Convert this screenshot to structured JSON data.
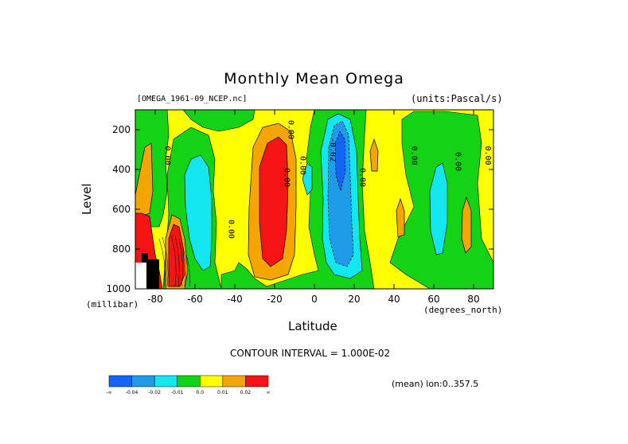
{
  "title": "Monthly Mean Omega",
  "file_label": "[OMEGA_1961-09_NCEP.nc]",
  "units_label": "(units:Pascal/s)",
  "ylabel": "Level",
  "yunit": "(millibar)",
  "xlabel": "Latitude",
  "xunit": "(degrees_north)",
  "contour_interval": "CONTOUR INTERVAL = 1.000E-02",
  "mean_label": "(mean) lon:0..357.5",
  "chart_data": {
    "type": "heatmap",
    "title": "Monthly Mean Omega",
    "xlabel": "Latitude",
    "ylabel": "Level",
    "xlim": [
      -90,
      90
    ],
    "ylim": [
      1000,
      100
    ],
    "x_ticks": [
      -80,
      -60,
      -40,
      -20,
      0,
      20,
      40,
      60,
      80
    ],
    "y_ticks": [
      200,
      400,
      600,
      800,
      1000
    ],
    "contour_labels": [
      {
        "text": "0.00",
        "lat": -75,
        "level": 330
      },
      {
        "text": "0.00",
        "lat": -43,
        "level": 700
      },
      {
        "text": "0.00",
        "lat": -13,
        "level": 200
      },
      {
        "text": "0.00",
        "lat": -7,
        "level": 380
      },
      {
        "text": "0.00",
        "lat": -15,
        "level": 440
      },
      {
        "text": "-0.02",
        "lat": 8,
        "level": 300
      },
      {
        "text": "0.00",
        "lat": 23,
        "level": 440
      },
      {
        "text": "0.00",
        "lat": 49,
        "level": 330
      },
      {
        "text": "0.00",
        "lat": 71,
        "level": 360
      },
      {
        "text": "0.00",
        "lat": 86,
        "level": 330
      }
    ],
    "colorbar": {
      "colors": [
        "#1464f5",
        "#1e9ce8",
        "#14e6f0",
        "#14d214",
        "#ffff00",
        "#f5a500",
        "#f51414"
      ],
      "labels": [
        "-∞",
        "-0.04",
        "-0.02",
        "-0.01",
        "0.0",
        "0.01",
        "0.02",
        "∞"
      ]
    },
    "regions": [
      {
        "level": "background",
        "color": "#ffff00"
      },
      {
        "level": "0 to -0.01",
        "color": "#14d214"
      },
      {
        "level": "-0.01 to -0.02",
        "color": "#14e6f0"
      },
      {
        "level": "-0.02 to -0.04",
        "color": "#1e9ce8"
      },
      {
        "level": "below -0.04",
        "color": "#1464f5"
      },
      {
        "level": "0.01 to 0.02",
        "color": "#f5a500"
      },
      {
        "level": "above 0.02",
        "color": "#f51414"
      }
    ]
  }
}
